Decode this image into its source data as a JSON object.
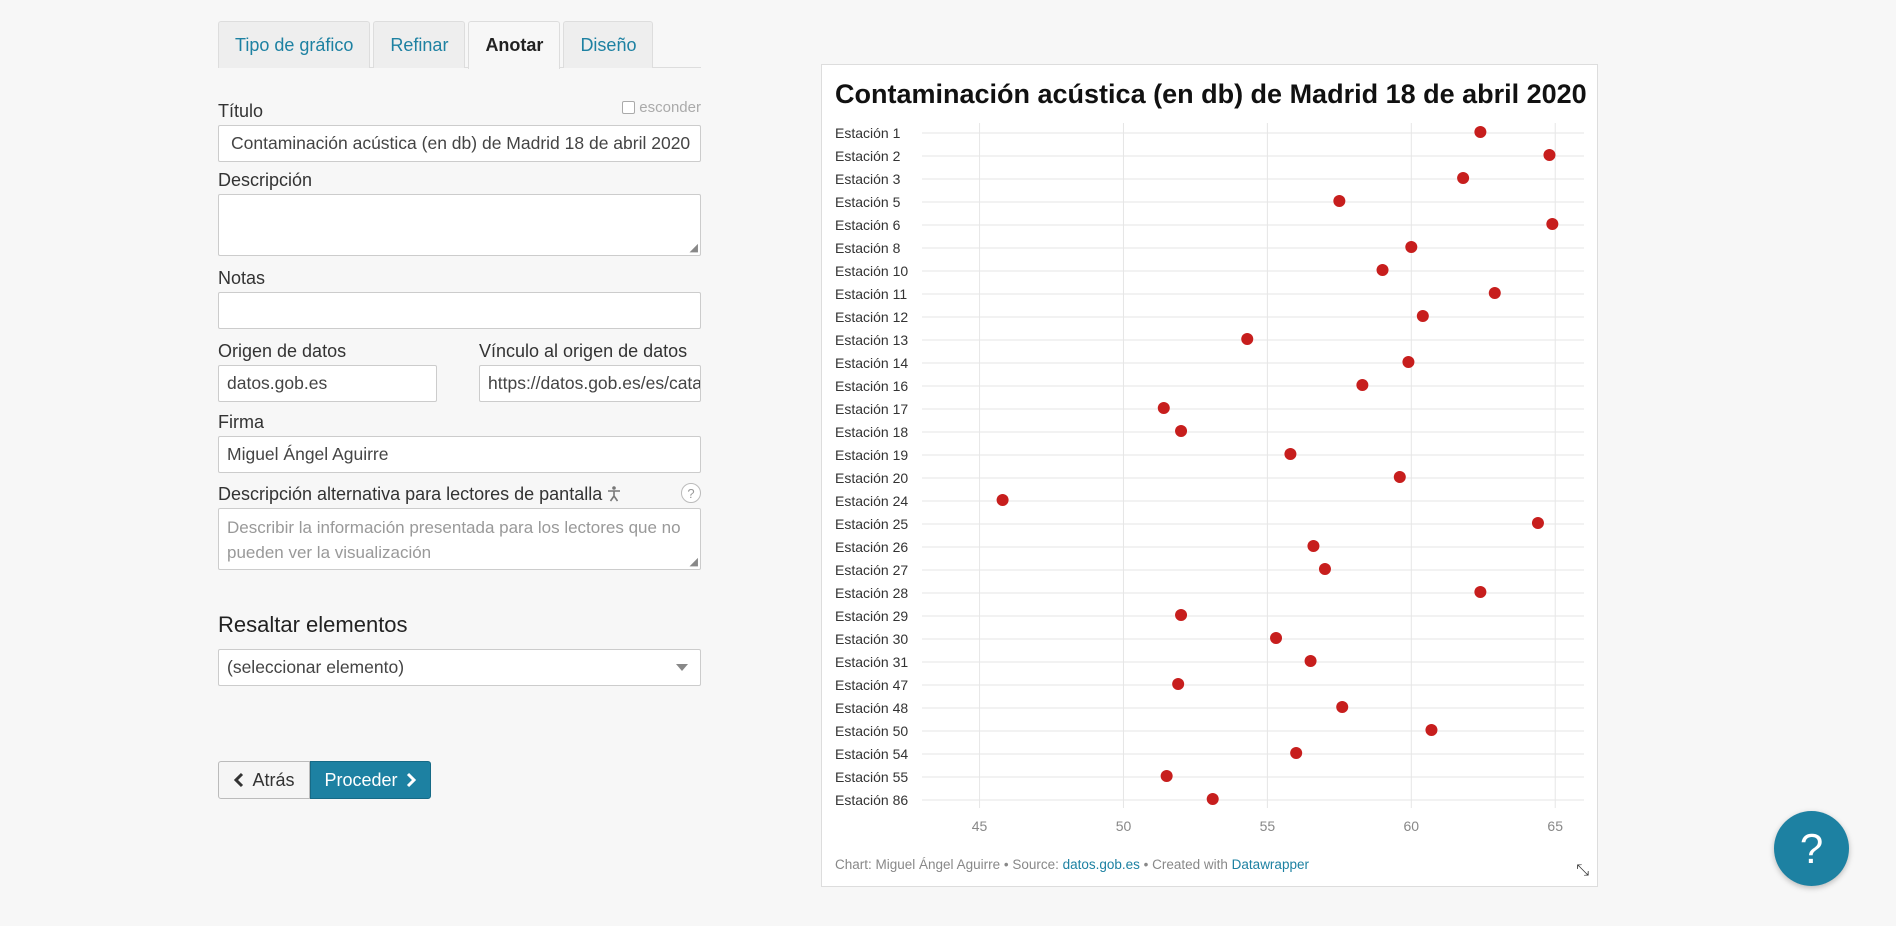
{
  "tabs": [
    {
      "label": "Tipo de gráfico",
      "active": false
    },
    {
      "label": "Refinar",
      "active": false
    },
    {
      "label": "Anotar",
      "active": true
    },
    {
      "label": "Diseño",
      "active": false
    }
  ],
  "form": {
    "title_label": "Título",
    "hide_label": "esconder",
    "title_value": "Contaminación acústica (en db) de Madrid 18 de abril 2020",
    "description_label": "Descripción",
    "notes_label": "Notas",
    "source_label": "Origen de datos",
    "source_value": "datos.gob.es",
    "source_link_label": "Vínculo al origen de datos",
    "source_link_value": "https://datos.gob.es/es/catalogo",
    "byline_label": "Firma",
    "byline_value": "Miguel Ángel Aguirre",
    "alt_label": "Descripción alternativa para lectores de pantalla",
    "alt_placeholder": "Describir la información presentada para los lectores que no pueden ver la visualización",
    "highlight_title": "Resaltar elementos",
    "highlight_select": "(seleccionar elemento)"
  },
  "nav": {
    "back_label": "Atrás",
    "next_label": "Proceder"
  },
  "chart_data": {
    "type": "scatter",
    "title": "Contaminación acústica (en db) de Madrid 18 de abril 2020",
    "xlim": [
      43,
      66
    ],
    "xticks": [
      45,
      50,
      55,
      60,
      65
    ],
    "grid": true,
    "color": "#c71e1d",
    "categories": [
      "Estación 1",
      "Estación 2",
      "Estación 3",
      "Estación 5",
      "Estación 6",
      "Estación 8",
      "Estación 10",
      "Estación 11",
      "Estación 12",
      "Estación 13",
      "Estación 14",
      "Estación 16",
      "Estación 17",
      "Estación 18",
      "Estación 19",
      "Estación 20",
      "Estación 24",
      "Estación 25",
      "Estación 26",
      "Estación 27",
      "Estación 28",
      "Estación 29",
      "Estación 30",
      "Estación 31",
      "Estación 47",
      "Estación 48",
      "Estación 50",
      "Estación 54",
      "Estación 55",
      "Estación 86"
    ],
    "values": [
      62.4,
      64.8,
      61.8,
      57.5,
      64.9,
      60.0,
      59.0,
      62.9,
      60.4,
      54.3,
      59.9,
      58.3,
      51.4,
      52.0,
      55.8,
      59.6,
      45.8,
      64.4,
      56.6,
      57.0,
      62.4,
      52.0,
      55.3,
      56.5,
      51.9,
      57.6,
      60.7,
      56.0,
      51.5,
      53.1
    ]
  },
  "footer": {
    "prefix": "Chart: Miguel Ángel Aguirre • Source: ",
    "source_link": "datos.gob.es",
    "middle": " • Created with ",
    "tool_link": "Datawrapper"
  },
  "help_label": "?"
}
